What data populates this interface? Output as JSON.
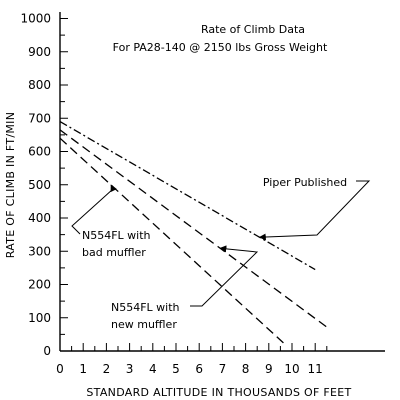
{
  "chart_data": {
    "type": "line",
    "title": "Rate of Climb Data",
    "subtitle": "For PA28-140 @ 2150 lbs Gross Weight",
    "xlabel": "STANDARD ALTITUDE IN THOUSANDS OF FEET",
    "ylabel": "RATE OF CLIMB IN FT/MIN",
    "xlim": [
      0,
      11
    ],
    "ylim": [
      0,
      1000
    ],
    "x_ticks": [
      "0",
      "1",
      "2",
      "3",
      "4",
      "5",
      "6",
      "7",
      "8",
      "9",
      "10",
      "11"
    ],
    "y_ticks": [
      "0",
      "100",
      "200",
      "300",
      "400",
      "500",
      "600",
      "700",
      "800",
      "900",
      "1000"
    ],
    "grid": false,
    "series": [
      {
        "name": "Piper Published",
        "style": "dash-dot",
        "x": [
          0,
          11
        ],
        "y": [
          690,
          245
        ]
      },
      {
        "name": "N554FL with new muffler",
        "style": "dashed",
        "x": [
          0,
          11.5
        ],
        "y": [
          665,
          72
        ]
      },
      {
        "name": "N554FL with bad muffler",
        "style": "dashed",
        "x": [
          0,
          9.7
        ],
        "y": [
          640,
          20
        ]
      }
    ],
    "annotations": [
      {
        "id": "piper",
        "lines": [
          "Piper Published"
        ],
        "series": 0,
        "point_x": 8.6
      },
      {
        "id": "bad",
        "lines": [
          "N554FL with",
          "bad muffler"
        ],
        "series": 2,
        "point_x": 2.2
      },
      {
        "id": "new",
        "lines": [
          "N554FL with",
          "new muffler"
        ],
        "series": 1,
        "point_x": 6.9
      }
    ]
  }
}
